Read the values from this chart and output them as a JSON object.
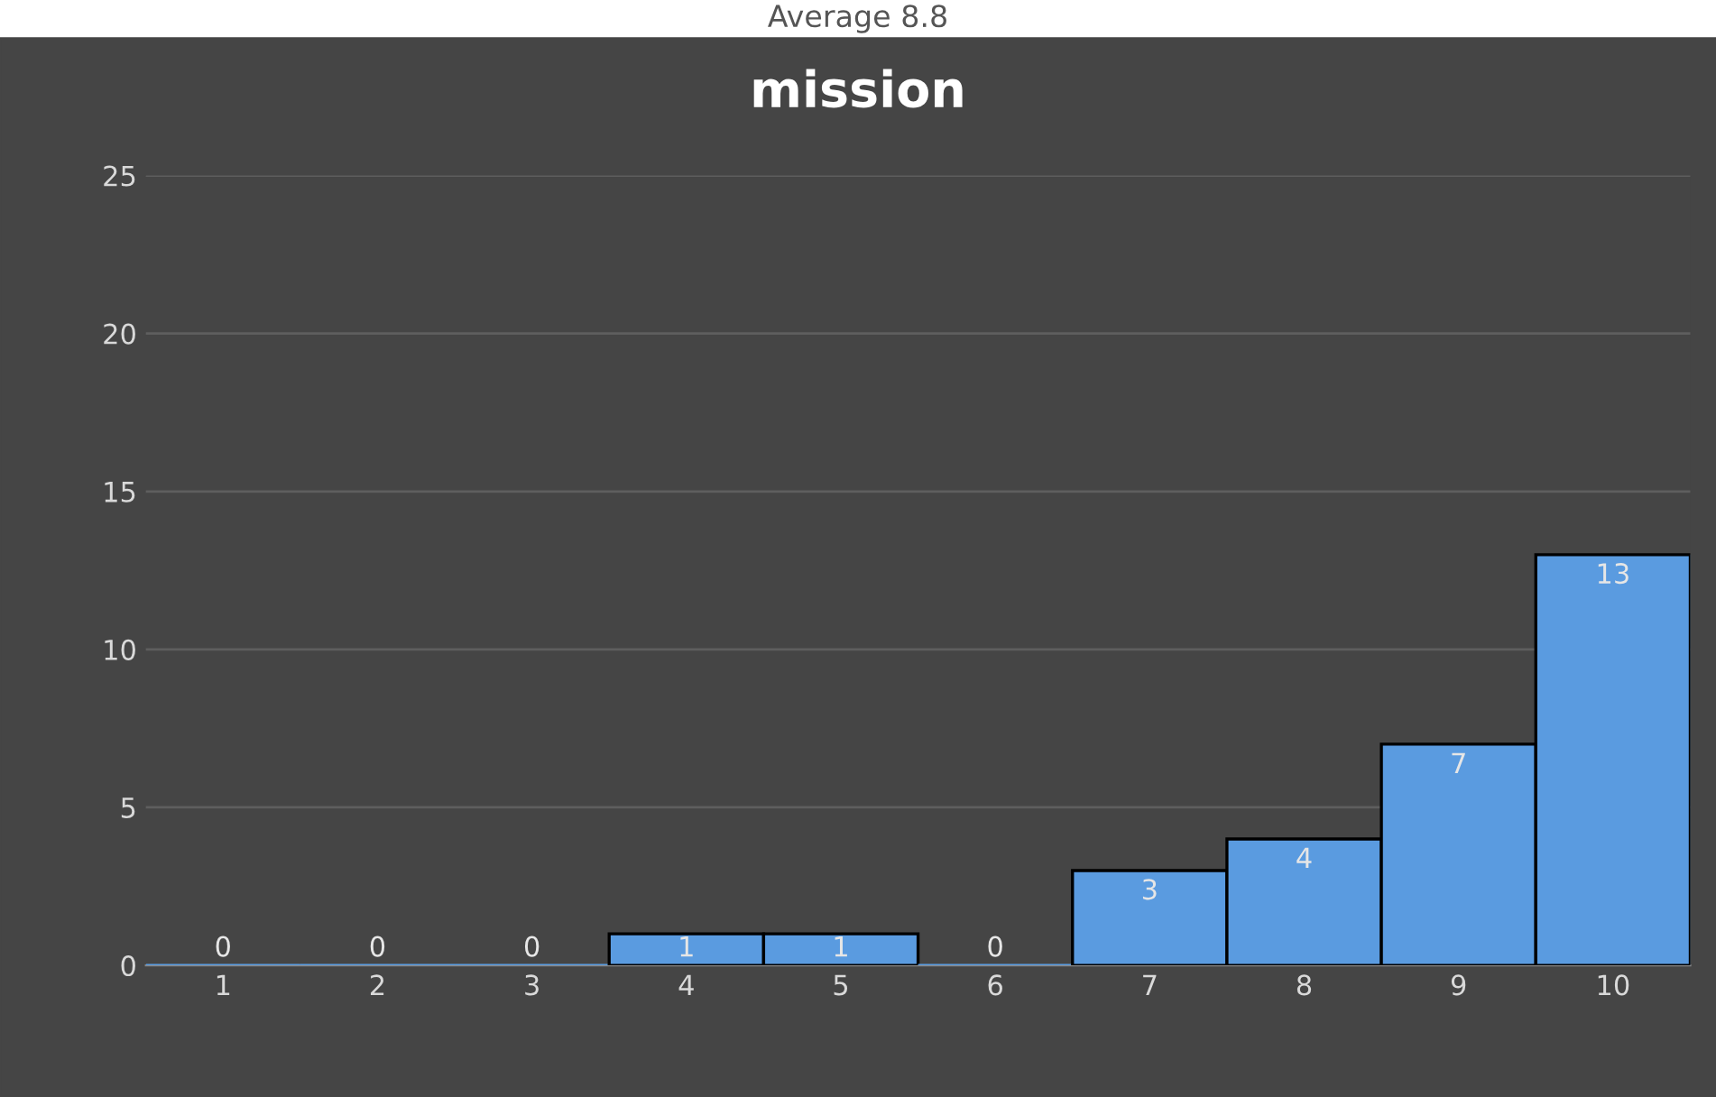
{
  "chart_data": {
    "type": "bar",
    "title": "mission",
    "annotations": [
      "Average 8.8"
    ],
    "categories": [
      "1",
      "2",
      "3",
      "4",
      "5",
      "6",
      "7",
      "8",
      "9",
      "10"
    ],
    "values": [
      0,
      0,
      0,
      1,
      1,
      0,
      3,
      4,
      7,
      13
    ],
    "color": "#5a9be0",
    "ylim": [
      0,
      25
    ],
    "yticks": [
      0,
      5,
      10,
      15,
      20,
      25
    ],
    "grid": "y",
    "data_labels": true
  }
}
